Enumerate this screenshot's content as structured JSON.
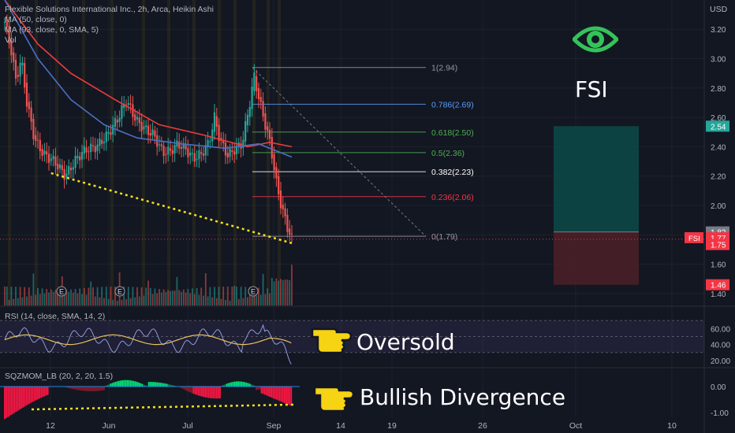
{
  "header": {
    "symbol_line": "Flexible Solutions International Inc., 2h, Arca, Heikin Ashi",
    "ma1": "MA (50, close, 0)",
    "ma2": "MA (93, close, 0, SMA, 5)",
    "vol": "Vol"
  },
  "ticker_label": "FSI",
  "currency": "USD",
  "rsi_legend": "RSI (14, close, SMA, 14, 2)",
  "sqz_legend": "SQZMOM_LB (20, 2, 20, 1.5)",
  "callouts": {
    "oversold": "Oversold",
    "divergence": "Bullish Divergence"
  },
  "icons": {
    "eye": "eye-icon",
    "hand": "pointing-hand-icon"
  },
  "colors": {
    "up": "#26a69a",
    "down": "#ef5350",
    "ma50": "#ef3b3b",
    "ma93": "#4b6fc4",
    "divergence": "#f5e11b",
    "rsi": "#8e9bd8",
    "rsi_ma": "#e8c35a"
  },
  "price_axis": {
    "ticks": [
      "3.20",
      "3.00",
      "2.80",
      "2.60",
      "2.40",
      "2.20",
      "2.00",
      "1.80",
      "1.60",
      "1.40"
    ],
    "tags": [
      {
        "text": "2.54",
        "color": "#26a69a"
      },
      {
        "text": "1.82",
        "color": "#787b86"
      },
      {
        "text": "1.77",
        "color": "#f23645",
        "prefix": "FSI"
      },
      {
        "text": "1.75",
        "color": "#f23645"
      },
      {
        "text": "1.46",
        "color": "#f23645"
      }
    ]
  },
  "rsi_axis": [
    "60.00",
    "40.00",
    "20.00"
  ],
  "sqz_axis": [
    "0.00",
    "-1.00"
  ],
  "x_axis": [
    "12",
    "Jun",
    "Jul",
    "Sep",
    "14",
    "19",
    "26",
    "Oct",
    "10"
  ],
  "fib_levels": [
    {
      "label": "1(2.94)",
      "price": 2.94,
      "color": "#9598a1"
    },
    {
      "label": "0.786(2.69)",
      "price": 2.69,
      "color": "#5b9cf6"
    },
    {
      "label": "0.618(2.50)",
      "price": 2.5,
      "color": "#4caf50"
    },
    {
      "label": "0.5(2.36)",
      "price": 2.36,
      "color": "#4caf50"
    },
    {
      "label": "0.382(2.23)",
      "price": 2.23,
      "color": "#ffffff"
    },
    {
      "label": "0.236(2.06)",
      "price": 2.06,
      "color": "#f23645"
    },
    {
      "label": "0(1.79)",
      "price": 1.79,
      "color": "#9598a1"
    }
  ],
  "position_box": {
    "target": 2.54,
    "entry": 1.82,
    "stop": 1.46
  },
  "earnings_markers": [
    "E",
    "E",
    "E"
  ],
  "chart_data": {
    "type": "candlestick",
    "title": "Flexible Solutions International Inc., 2h, Arca, Heikin Ashi",
    "close_path": [
      [
        0,
        3.25
      ],
      [
        6,
        3.05
      ],
      [
        10,
        2.85
      ],
      [
        15,
        3.0
      ],
      [
        20,
        2.7
      ],
      [
        27,
        2.45
      ],
      [
        35,
        2.35
      ],
      [
        45,
        2.3
      ],
      [
        55,
        2.2
      ],
      [
        65,
        2.32
      ],
      [
        73,
        2.38
      ],
      [
        83,
        2.4
      ],
      [
        93,
        2.48
      ],
      [
        103,
        2.6
      ],
      [
        110,
        2.72
      ],
      [
        115,
        2.64
      ],
      [
        120,
        2.57
      ],
      [
        127,
        2.52
      ],
      [
        135,
        2.48
      ],
      [
        143,
        2.36
      ],
      [
        150,
        2.37
      ],
      [
        157,
        2.42
      ],
      [
        164,
        2.38
      ],
      [
        171,
        2.32
      ],
      [
        178,
        2.35
      ],
      [
        185,
        2.43
      ],
      [
        190,
        2.6
      ],
      [
        195,
        2.44
      ],
      [
        202,
        2.34
      ],
      [
        208,
        2.38
      ],
      [
        215,
        2.42
      ],
      [
        221,
        2.66
      ],
      [
        226,
        2.88
      ],
      [
        231,
        2.7
      ],
      [
        236,
        2.55
      ],
      [
        241,
        2.4
      ],
      [
        246,
        2.15
      ],
      [
        251,
        1.98
      ],
      [
        256,
        1.85
      ],
      [
        260,
        1.77
      ]
    ],
    "ma50": [
      [
        0,
        3.4
      ],
      [
        30,
        3.1
      ],
      [
        60,
        2.9
      ],
      [
        100,
        2.72
      ],
      [
        140,
        2.55
      ],
      [
        180,
        2.48
      ],
      [
        220,
        2.4
      ],
      [
        240,
        2.43
      ],
      [
        260,
        2.4
      ]
    ],
    "ma93": [
      [
        0,
        3.4
      ],
      [
        30,
        3.0
      ],
      [
        60,
        2.72
      ],
      [
        90,
        2.55
      ],
      [
        120,
        2.46
      ],
      [
        160,
        2.42
      ],
      [
        200,
        2.39
      ],
      [
        230,
        2.42
      ],
      [
        260,
        2.33
      ]
    ],
    "divergence_price": [
      [
        42,
        2.22
      ],
      [
        260,
        1.77
      ]
    ],
    "ylim": [
      1.35,
      3.3
    ],
    "rsi_ylim": [
      15,
      80
    ],
    "sqz_ylim": [
      -1.2,
      0.4
    ]
  }
}
